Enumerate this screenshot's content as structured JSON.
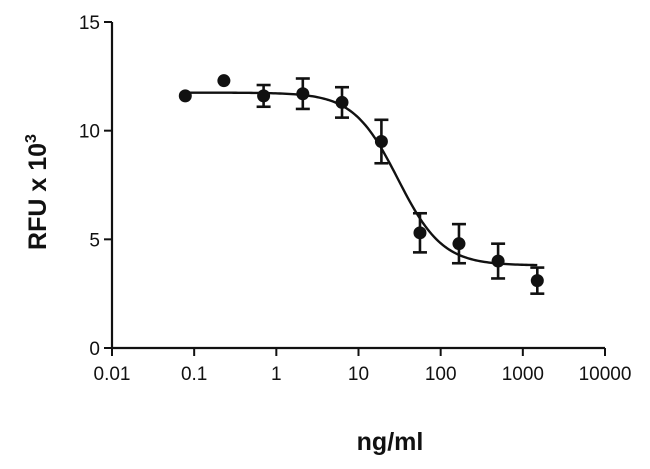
{
  "chart_data": {
    "type": "scatter",
    "title": "",
    "xlabel": "ng/ml",
    "ylabel_main": "RFU x 10",
    "ylabel_sup": "3",
    "x_scale": "log",
    "xlim": [
      0.01,
      10000
    ],
    "ylim": [
      0,
      15
    ],
    "x_ticks": [
      0.01,
      0.1,
      1,
      10,
      100,
      1000,
      10000
    ],
    "x_tick_labels": [
      "0.01",
      "0.1",
      "1",
      "10",
      "100",
      "1000",
      "10000"
    ],
    "y_ticks": [
      0,
      5,
      10,
      15
    ],
    "y_tick_labels": [
      "0",
      "5",
      "10",
      "15"
    ],
    "grid": false,
    "legend": "none",
    "points": [
      {
        "x": 0.078,
        "y": 11.6,
        "err": 0
      },
      {
        "x": 0.23,
        "y": 12.3,
        "err": 0
      },
      {
        "x": 0.7,
        "y": 11.6,
        "err": 0.5
      },
      {
        "x": 2.1,
        "y": 11.7,
        "err": 0.7
      },
      {
        "x": 6.3,
        "y": 11.3,
        "err": 0.7
      },
      {
        "x": 19,
        "y": 9.5,
        "err": 1.0
      },
      {
        "x": 56,
        "y": 5.3,
        "err": 0.9
      },
      {
        "x": 167,
        "y": 4.8,
        "err": 0.9
      },
      {
        "x": 500,
        "y": 4.0,
        "err": 0.8
      },
      {
        "x": 1500,
        "y": 3.1,
        "err": 0.6
      }
    ],
    "fit": {
      "model": "sigmoidal dose-response",
      "top": 11.75,
      "bottom": 3.8,
      "log_ec50": 1.48,
      "hill": 1.6,
      "x_range": [
        0.078,
        1500
      ]
    },
    "colors": {
      "ink": "#111111",
      "background": "#ffffff"
    }
  }
}
